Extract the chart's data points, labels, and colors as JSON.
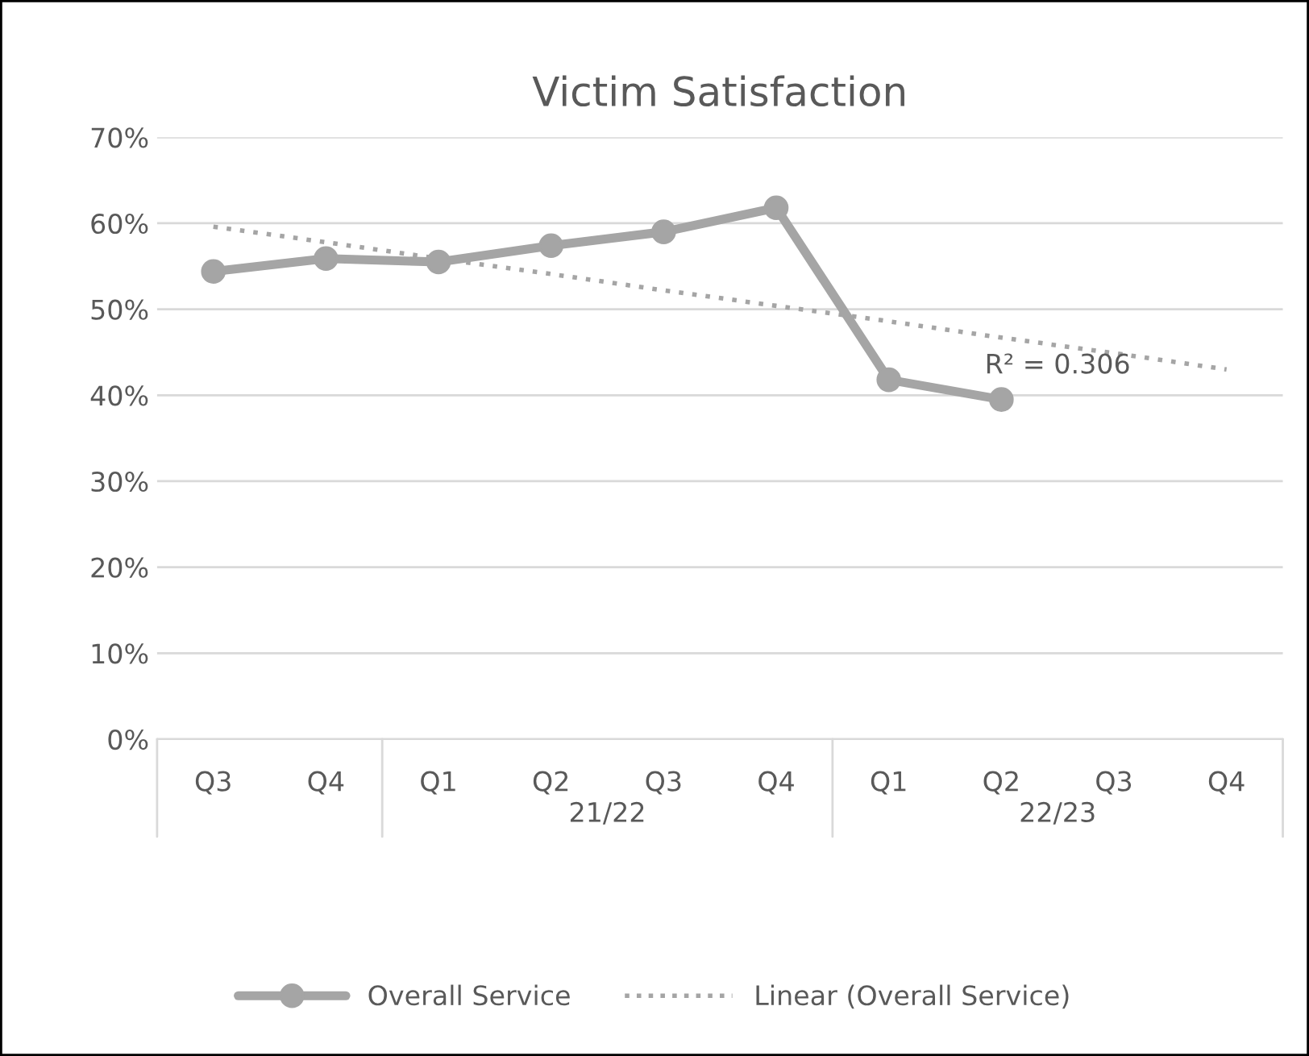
{
  "chart_data": {
    "type": "line",
    "title": "Victim Satisfaction",
    "categories": [
      "Q3",
      "Q4",
      "Q1",
      "Q2",
      "Q3",
      "Q4",
      "Q1",
      "Q2",
      "Q3",
      "Q4"
    ],
    "series": [
      {
        "name": "Overall Service",
        "color": "#a5a5a5",
        "marker": "circle",
        "line_style": "solid",
        "values": [
          54.4,
          55.9,
          55.5,
          57.4,
          59.0,
          61.8,
          41.8,
          39.5,
          null,
          null
        ]
      },
      {
        "name": "Linear (Overall Service)",
        "color": "#a5a5a5",
        "marker": "none",
        "line_style": "dotted",
        "values": [
          59.6,
          57.8,
          55.9,
          54.1,
          52.2,
          50.4,
          48.6,
          46.7,
          44.9,
          43.0
        ]
      }
    ],
    "ylim": [
      0,
      70
    ],
    "yticks": [
      {
        "value": 0,
        "label": "0%"
      },
      {
        "value": 10,
        "label": "10%"
      },
      {
        "value": 20,
        "label": "20%"
      },
      {
        "value": 30,
        "label": "30%"
      },
      {
        "value": 40,
        "label": "40%"
      },
      {
        "value": 50,
        "label": "50%"
      },
      {
        "value": 60,
        "label": "60%"
      },
      {
        "value": 70,
        "label": "70%"
      }
    ],
    "annotations": [
      "R² = 0.306",
      "21/22",
      "22/23"
    ],
    "grid": "y",
    "legend": "bottom"
  }
}
